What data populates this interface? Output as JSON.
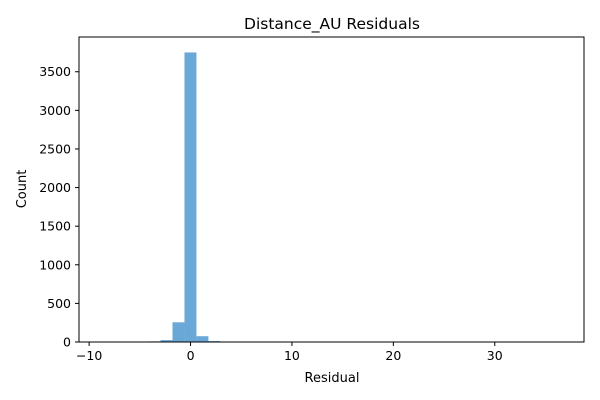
{
  "chart_data": {
    "type": "bar",
    "title": "Distance_AU Residuals",
    "xlabel": "Residual",
    "ylabel": "Count",
    "xlim": [
      -11.0,
      38.8
    ],
    "ylim": [
      0,
      3950
    ],
    "xticks": [
      -10,
      0,
      10,
      20,
      30
    ],
    "xtick_labels": [
      "−10",
      "0",
      "10",
      "20",
      "30"
    ],
    "yticks": [
      0,
      500,
      1000,
      1500,
      2000,
      2500,
      3000,
      3500
    ],
    "ytick_labels": [
      "0",
      "500",
      "1000",
      "1500",
      "2000",
      "2500",
      "3000",
      "3500"
    ],
    "bin_width": 1.18,
    "bins": [
      {
        "x0": -8.86,
        "x1": -7.68,
        "count": 1
      },
      {
        "x0": -7.68,
        "x1": -6.5,
        "count": 1
      },
      {
        "x0": -6.5,
        "x1": -5.32,
        "count": 1
      },
      {
        "x0": -5.32,
        "x1": -4.14,
        "count": 2
      },
      {
        "x0": -4.14,
        "x1": -2.96,
        "count": 8
      },
      {
        "x0": -2.96,
        "x1": -1.78,
        "count": 25
      },
      {
        "x0": -1.78,
        "x1": -0.6,
        "count": 255
      },
      {
        "x0": -0.6,
        "x1": 0.58,
        "count": 3750
      },
      {
        "x0": 0.58,
        "x1": 1.76,
        "count": 75
      },
      {
        "x0": 1.76,
        "x1": 2.94,
        "count": 12
      },
      {
        "x0": 2.94,
        "x1": 4.12,
        "count": 3
      },
      {
        "x0": 4.12,
        "x1": 5.3,
        "count": 1
      },
      {
        "x0": 36.5,
        "x1": 37.68,
        "count": 1
      }
    ],
    "bar_color": "#5a9fd4",
    "bar_opacity": 0.9,
    "grid": false,
    "legend": "none"
  }
}
